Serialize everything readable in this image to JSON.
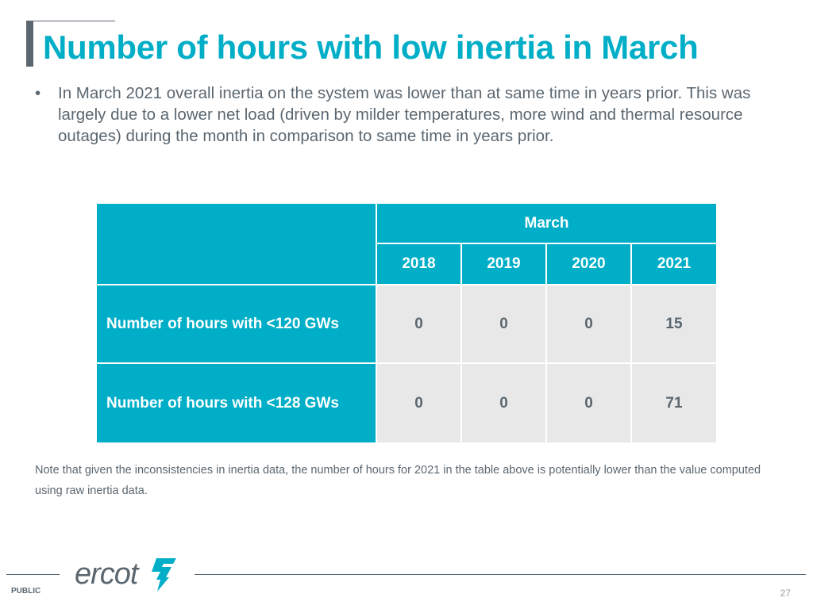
{
  "slide": {
    "title": "Number of hours with low inertia in March",
    "bullet": "In March 2021 overall inertia on the system was lower than at same time in years prior. This was largely due to a lower net load (driven by milder temperatures, more wind and thermal resource outages) during the month in comparison to same time in years prior.",
    "note": "Note that given the inconsistencies in inertia data, the number of hours for 2021 in the table above is potentially lower than the value computed using raw inertia data.",
    "footer": {
      "classification": "PUBLIC",
      "page_number": "27",
      "logo_text": "ercot"
    }
  },
  "table": {
    "group_header": "March",
    "years": [
      "2018",
      "2019",
      "2020",
      "2021"
    ],
    "rows": [
      {
        "label": "Number of hours with <120 GWs",
        "values": [
          "0",
          "0",
          "0",
          "15"
        ]
      },
      {
        "label": "Number of hours with <128 GWs",
        "values": [
          "0",
          "0",
          "0",
          "71"
        ]
      }
    ]
  },
  "colors": {
    "accent": "#00aec7",
    "text": "#5b6770",
    "cell_bg": "#e8e8e8"
  }
}
